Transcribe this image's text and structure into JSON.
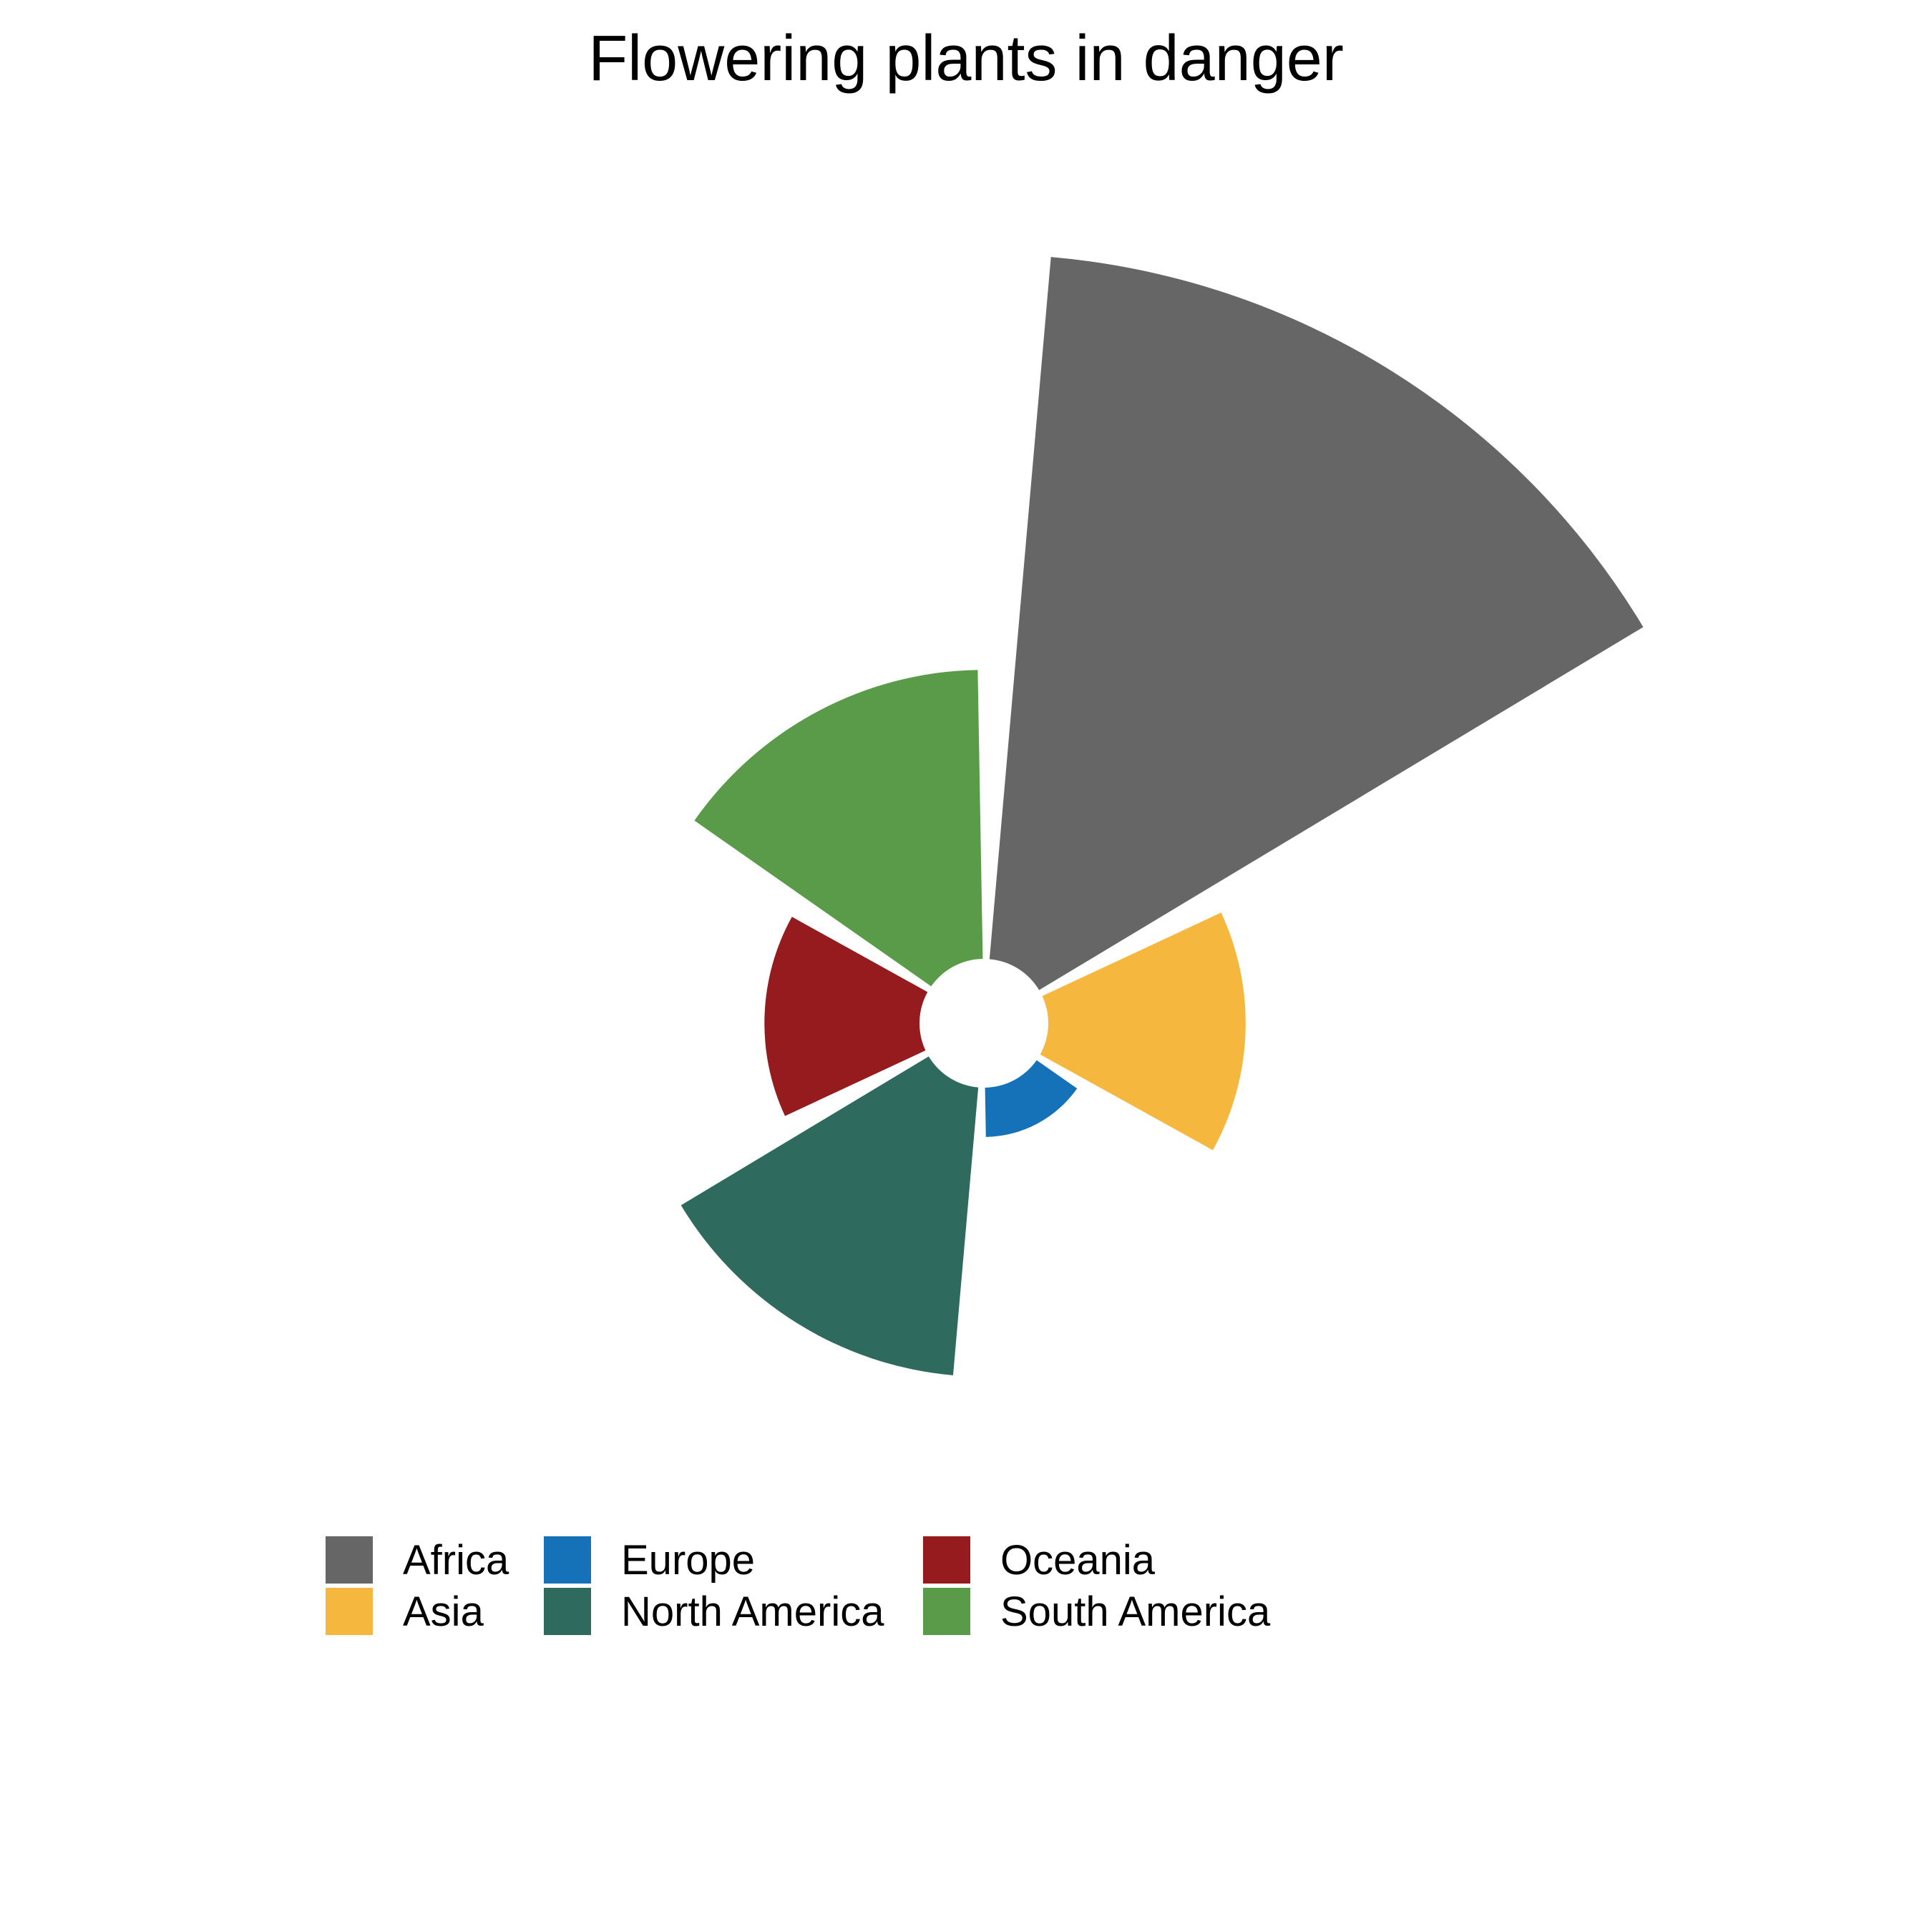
{
  "chart_data": {
    "type": "polar-bar",
    "title": "Flowering plants in danger",
    "categories": [
      "Africa",
      "Asia",
      "Europe",
      "North America",
      "Oceania",
      "South America"
    ],
    "values": [
      100,
      28,
      7,
      41,
      22,
      41
    ],
    "colors": [
      "#666666",
      "#F5B73D",
      "#1572B8",
      "#2E6B5E",
      "#961B1E",
      "#5A9B4A"
    ],
    "legend": {
      "position": "bottom",
      "entries": [
        {
          "label": "Africa",
          "color": "#666666"
        },
        {
          "label": "Asia",
          "color": "#F5B73D"
        },
        {
          "label": "Europe",
          "color": "#1572B8"
        },
        {
          "label": "North America",
          "color": "#2E6B5E"
        },
        {
          "label": "Oceania",
          "color": "#961B1E"
        },
        {
          "label": "South America",
          "color": "#5A9B4A"
        }
      ]
    },
    "grid": false
  }
}
